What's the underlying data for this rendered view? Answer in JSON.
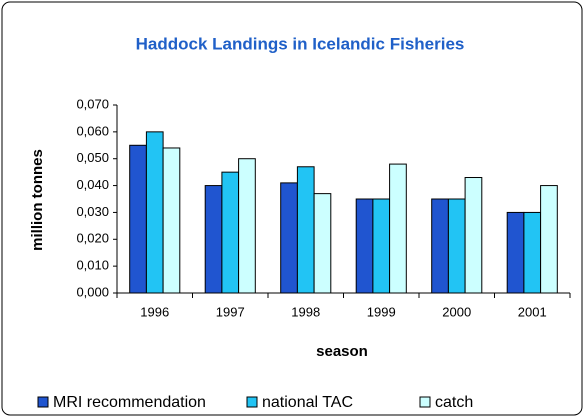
{
  "chart_data": {
    "type": "bar",
    "title": "Haddock Landings in Icelandic Fisheries",
    "x_label": "season",
    "y_label": "million tonnes",
    "categories": [
      "1996",
      "1997",
      "1998",
      "1999",
      "2000",
      "2001"
    ],
    "series": [
      {
        "name": "MRI recommendation",
        "color": "#2055d0",
        "values": [
          0.055,
          0.04,
          0.041,
          0.035,
          0.035,
          0.03
        ]
      },
      {
        "name": "national TAC",
        "color": "#22c4f4",
        "values": [
          0.06,
          0.045,
          0.047,
          0.035,
          0.035,
          0.03
        ]
      },
      {
        "name": "catch",
        "color": "#ccffff",
        "values": [
          0.054,
          0.05,
          0.037,
          0.048,
          0.043,
          0.04
        ]
      }
    ],
    "ylim": [
      0,
      0.07
    ],
    "yticks": [
      {
        "value": 0,
        "label": "0,000"
      },
      {
        "value": 0.01,
        "label": "0,010"
      },
      {
        "value": 0.02,
        "label": "0,020"
      },
      {
        "value": 0.03,
        "label": "0,030"
      },
      {
        "value": 0.04,
        "label": "0,040"
      },
      {
        "value": 0.05,
        "label": "0,050"
      },
      {
        "value": 0.06,
        "label": "0,060"
      },
      {
        "value": 0.07,
        "label": "0,070"
      }
    ],
    "grid": false,
    "legend": "bottom"
  }
}
